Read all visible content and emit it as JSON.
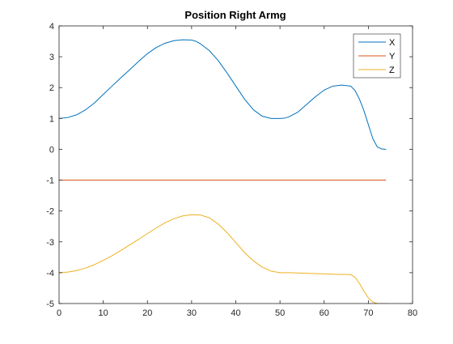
{
  "chart_data": {
    "type": "line",
    "title": "Position Right Armg",
    "xlabel": "",
    "ylabel": "",
    "xlim": [
      0,
      80
    ],
    "ylim": [
      -5,
      4
    ],
    "xticks": [
      0,
      10,
      20,
      30,
      40,
      50,
      60,
      70,
      80
    ],
    "yticks": [
      -5,
      -4,
      -3,
      -2,
      -1,
      0,
      1,
      2,
      3,
      4
    ],
    "xtick_labels": [
      "0",
      "10",
      "20",
      "30",
      "40",
      "50",
      "60",
      "70",
      "80"
    ],
    "ytick_labels": [
      "-5",
      "-4",
      "-3",
      "-2",
      "-1",
      "0",
      "1",
      "2",
      "3",
      "4"
    ],
    "grid": false,
    "legend_position": "top-right",
    "series": [
      {
        "name": "X",
        "color": "#0072BD",
        "x": [
          0,
          2,
          4,
          6,
          8,
          10,
          12,
          14,
          16,
          18,
          20,
          22,
          24,
          26,
          28,
          30,
          31,
          32,
          34,
          36,
          38,
          40,
          42,
          44,
          46,
          48,
          50,
          51,
          52,
          54,
          56,
          58,
          60,
          62,
          64,
          66,
          67,
          68,
          69,
          70,
          71,
          72,
          73,
          74
        ],
        "y": [
          1.0,
          1.03,
          1.12,
          1.28,
          1.5,
          1.78,
          2.05,
          2.32,
          2.58,
          2.85,
          3.1,
          3.3,
          3.44,
          3.52,
          3.55,
          3.54,
          3.5,
          3.42,
          3.2,
          2.88,
          2.48,
          2.05,
          1.62,
          1.28,
          1.07,
          1.0,
          1.0,
          1.01,
          1.05,
          1.2,
          1.45,
          1.7,
          1.92,
          2.05,
          2.08,
          2.05,
          1.9,
          1.62,
          1.25,
          0.8,
          0.35,
          0.08,
          0.01,
          0.0
        ]
      },
      {
        "name": "Y",
        "color": "#D95319",
        "x": [
          0,
          74
        ],
        "y": [
          -1.0,
          -1.0
        ]
      },
      {
        "name": "Z",
        "color": "#EDB120",
        "x": [
          0,
          2,
          4,
          6,
          8,
          10,
          12,
          14,
          16,
          18,
          20,
          22,
          24,
          26,
          28,
          30,
          32,
          34,
          36,
          38,
          40,
          42,
          44,
          46,
          48,
          50,
          52,
          54,
          56,
          58,
          60,
          62,
          64,
          66,
          67,
          68,
          69,
          70,
          71,
          72,
          73,
          74
        ],
        "y": [
          -4.0,
          -3.98,
          -3.93,
          -3.85,
          -3.74,
          -3.6,
          -3.45,
          -3.28,
          -3.1,
          -2.92,
          -2.73,
          -2.55,
          -2.38,
          -2.25,
          -2.16,
          -2.12,
          -2.13,
          -2.22,
          -2.42,
          -2.7,
          -3.02,
          -3.35,
          -3.62,
          -3.82,
          -3.95,
          -4.0,
          -4.0,
          -4.01,
          -4.02,
          -4.03,
          -4.04,
          -4.05,
          -4.06,
          -4.06,
          -4.15,
          -4.35,
          -4.6,
          -4.82,
          -4.95,
          -5.0,
          -5.0,
          -5.0
        ]
      }
    ]
  }
}
